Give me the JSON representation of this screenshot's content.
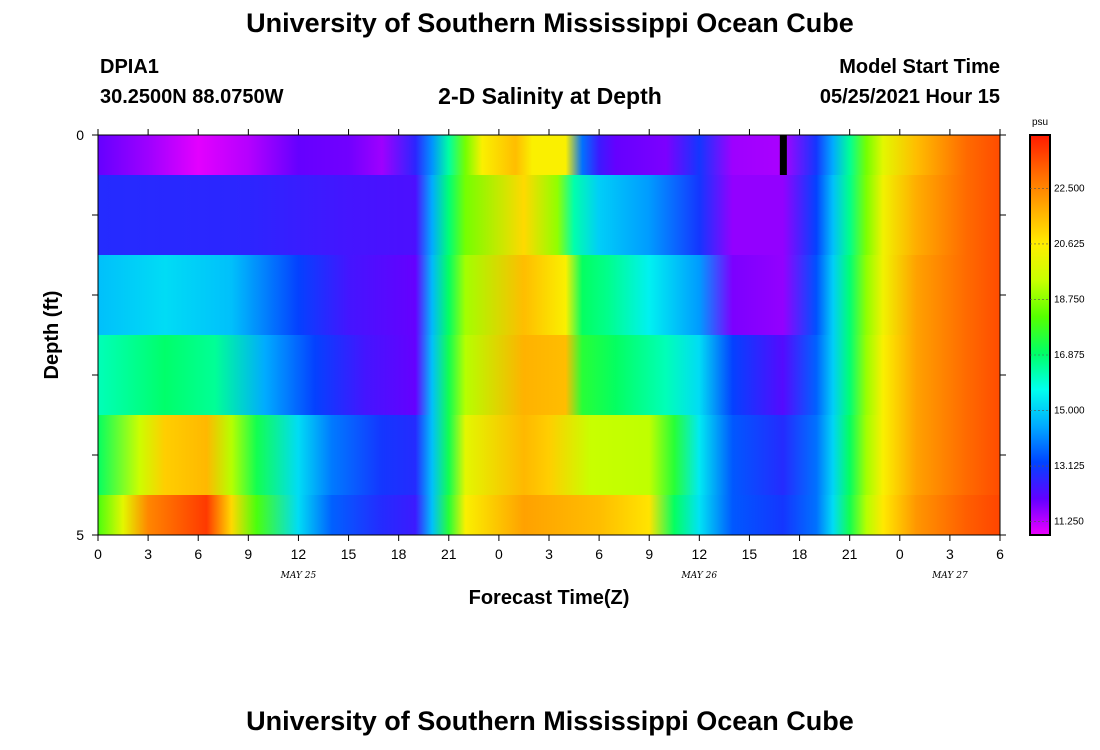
{
  "header": {
    "title": "University of Southern Mississippi Ocean Cube",
    "station_id": "DPIA1",
    "station_coords": "30.2500N  88.0750W",
    "chart_title": "2-D Salinity at Depth",
    "start_label": "Model Start Time",
    "start_value": "05/25/2021 Hour 15"
  },
  "footer": {
    "title": "University of Southern Mississippi Ocean Cube"
  },
  "chart_data": {
    "type": "heatmap",
    "title": "2-D Salinity at Depth",
    "xlabel": "Forecast Time(Z)",
    "ylabel": "Depth (ft)",
    "x_tick_labels": [
      "0",
      "3",
      "6",
      "9",
      "12",
      "15",
      "18",
      "21",
      "0",
      "3",
      "6",
      "9",
      "12",
      "15",
      "18",
      "21",
      "0",
      "3",
      "6"
    ],
    "x_day_labels": [
      {
        "label": "MAY 25",
        "at_tick": 4
      },
      {
        "label": "MAY 26",
        "at_tick": 12
      },
      {
        "label": "MAY 27",
        "at_tick": 17
      }
    ],
    "y_tick_labels": [
      "0",
      "5"
    ],
    "ylim": [
      0,
      5
    ],
    "xlim_hours": [
      0,
      54
    ],
    "colorbar": {
      "unit": "psu",
      "labels": [
        "22.500",
        "20.625",
        "18.750",
        "16.875",
        "15.000",
        "13.125",
        "11.250"
      ],
      "range": [
        10.8,
        24.3
      ],
      "colors": [
        "#ee00ff",
        "#6200ff",
        "#0044ff",
        "#00aaff",
        "#00ffee",
        "#00ff66",
        "#55ff00",
        "#c8ff00",
        "#ffee00",
        "#ffaa00",
        "#ff6600",
        "#ff1a00"
      ]
    },
    "rows": [
      {
        "depth_from": 0,
        "depth_to": 0.5,
        "stops": [
          [
            0,
            12.0
          ],
          [
            3,
            11.5
          ],
          [
            6,
            10.9
          ],
          [
            9,
            11.3
          ],
          [
            12,
            12.0
          ],
          [
            15,
            11.9
          ],
          [
            17,
            11.5
          ],
          [
            19,
            12.7
          ],
          [
            20,
            14.2
          ],
          [
            21,
            16.4
          ],
          [
            22,
            18.5
          ],
          [
            23,
            20.5
          ],
          [
            25,
            21.5
          ],
          [
            26,
            20.5
          ],
          [
            28,
            20.5
          ],
          [
            29,
            13.8
          ],
          [
            30,
            12.5
          ],
          [
            31,
            12.0
          ],
          [
            34,
            11.8
          ],
          [
            36,
            13.0
          ],
          [
            38,
            11.5
          ],
          [
            41,
            11.4
          ],
          [
            43,
            13.0
          ],
          [
            44,
            14.5
          ],
          [
            45,
            16.5
          ],
          [
            46,
            18.5
          ],
          [
            47,
            20.0
          ],
          [
            49,
            21.5
          ],
          [
            52,
            23.0
          ],
          [
            54,
            23.5
          ]
        ]
      },
      {
        "depth_from": 0.5,
        "depth_to": 1.5,
        "stops": [
          [
            0,
            12.8
          ],
          [
            9,
            12.7
          ],
          [
            15,
            12.4
          ],
          [
            19,
            12.3
          ],
          [
            20,
            14.5
          ],
          [
            21,
            16.8
          ],
          [
            22,
            18.5
          ],
          [
            25.5,
            21.0
          ],
          [
            27.5,
            18.8
          ],
          [
            28.5,
            16.3
          ],
          [
            30,
            15.0
          ],
          [
            33,
            14.3
          ],
          [
            36,
            13.0
          ],
          [
            38,
            11.6
          ],
          [
            41,
            11.6
          ],
          [
            43,
            13.2
          ],
          [
            44,
            14.8
          ],
          [
            45,
            16.6
          ],
          [
            46,
            18.6
          ],
          [
            47,
            20.3
          ],
          [
            49,
            21.8
          ],
          [
            52,
            23.0
          ],
          [
            54,
            23.5
          ]
        ]
      },
      {
        "depth_from": 1.5,
        "depth_to": 2.5,
        "stops": [
          [
            0,
            14.8
          ],
          [
            4,
            15.2
          ],
          [
            8,
            14.8
          ],
          [
            12,
            13.2
          ],
          [
            15,
            12.4
          ],
          [
            19,
            12.0
          ],
          [
            20,
            14.7
          ],
          [
            21,
            17.0
          ],
          [
            22,
            19.0
          ],
          [
            25.5,
            21.5
          ],
          [
            28,
            20.5
          ],
          [
            29,
            17.0
          ],
          [
            30.5,
            16.6
          ],
          [
            33,
            15.5
          ],
          [
            36,
            14.3
          ],
          [
            38,
            11.8
          ],
          [
            41,
            11.6
          ],
          [
            43,
            13.4
          ],
          [
            44,
            15.0
          ],
          [
            45,
            16.8
          ],
          [
            46,
            18.8
          ],
          [
            47,
            20.3
          ],
          [
            49,
            22.0
          ],
          [
            52,
            23.0
          ],
          [
            54,
            23.5
          ]
        ]
      },
      {
        "depth_from": 2.5,
        "depth_to": 3.5,
        "stops": [
          [
            0,
            16.2
          ],
          [
            4,
            16.9
          ],
          [
            7,
            16.5
          ],
          [
            10,
            14.5
          ],
          [
            13,
            13.2
          ],
          [
            16,
            12.4
          ],
          [
            19,
            12.0
          ],
          [
            20,
            14.8
          ],
          [
            21,
            17.2
          ],
          [
            22,
            19.2
          ],
          [
            25.5,
            21.7
          ],
          [
            28,
            21.5
          ],
          [
            29,
            17.5
          ],
          [
            31,
            17.0
          ],
          [
            34,
            16.2
          ],
          [
            36,
            15.2
          ],
          [
            38,
            13.2
          ],
          [
            41,
            12.2
          ],
          [
            43,
            13.6
          ],
          [
            44,
            15.0
          ],
          [
            45,
            16.8
          ],
          [
            46,
            18.9
          ],
          [
            47,
            20.5
          ],
          [
            49,
            22.0
          ],
          [
            52,
            23.0
          ],
          [
            54,
            23.5
          ]
        ]
      },
      {
        "depth_from": 3.5,
        "depth_to": 4.5,
        "stops": [
          [
            0,
            17.0
          ],
          [
            2.5,
            19.5
          ],
          [
            4,
            21.2
          ],
          [
            6.5,
            21.6
          ],
          [
            8,
            19.2
          ],
          [
            9.5,
            17.2
          ],
          [
            12,
            15.2
          ],
          [
            14,
            13.9
          ],
          [
            17,
            13.0
          ],
          [
            19,
            12.8
          ],
          [
            20,
            14.8
          ],
          [
            21,
            17.2
          ],
          [
            22,
            20.0
          ],
          [
            25.5,
            21.6
          ],
          [
            27,
            21.2
          ],
          [
            29.5,
            19.4
          ],
          [
            33,
            19.3
          ],
          [
            34.5,
            17.5
          ],
          [
            36,
            15.4
          ],
          [
            38,
            13.5
          ],
          [
            41,
            12.8
          ],
          [
            43,
            13.8
          ],
          [
            44,
            15.1
          ],
          [
            45,
            17.0
          ],
          [
            46,
            19.0
          ],
          [
            47,
            20.5
          ],
          [
            49,
            22.0
          ],
          [
            52,
            23.0
          ],
          [
            54,
            23.5
          ]
        ]
      },
      {
        "depth_from": 4.5,
        "depth_to": 5,
        "stops": [
          [
            0,
            18.0
          ],
          [
            1.5,
            20.0
          ],
          [
            3,
            22.5
          ],
          [
            6.5,
            23.8
          ],
          [
            8,
            21.0
          ],
          [
            9.5,
            18.0
          ],
          [
            12,
            15.2
          ],
          [
            14,
            13.6
          ],
          [
            17,
            12.8
          ],
          [
            19,
            12.5
          ],
          [
            20,
            14.8
          ],
          [
            21,
            17.5
          ],
          [
            22,
            20.5
          ],
          [
            25.5,
            22.0
          ],
          [
            30,
            21.5
          ],
          [
            33,
            20.8
          ],
          [
            34.5,
            17.0
          ],
          [
            36,
            15.3
          ],
          [
            38,
            13.5
          ],
          [
            41,
            13.0
          ],
          [
            43,
            13.8
          ],
          [
            44,
            15.2
          ],
          [
            45,
            17.2
          ],
          [
            46,
            19.2
          ],
          [
            47,
            20.7
          ],
          [
            49,
            22.2
          ],
          [
            52,
            23.2
          ],
          [
            54,
            23.6
          ]
        ]
      }
    ],
    "annotations": [
      {
        "type": "black-mark",
        "x_hours": 41,
        "depth_from": 0,
        "depth_to": 0.5
      }
    ]
  }
}
